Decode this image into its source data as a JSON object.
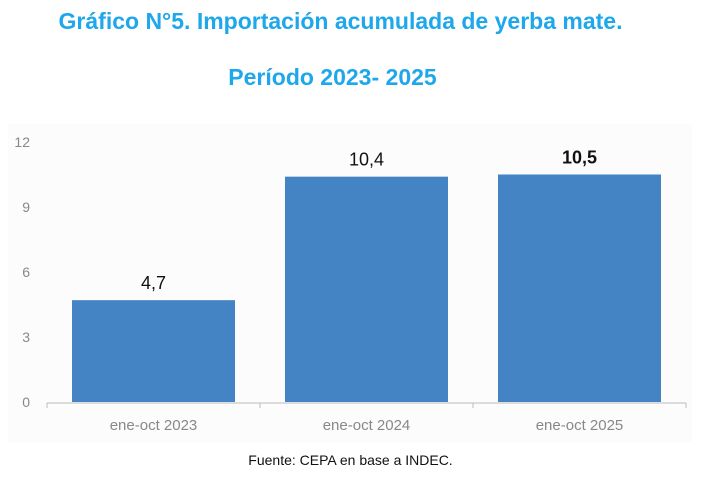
{
  "chart_data": {
    "type": "bar",
    "title": "Gráfico N°5. Importación acumulada de yerba mate.",
    "subtitle": "Período 2023- 2025",
    "categories": [
      "ene-oct 2023",
      "ene-oct 2024",
      "ene-oct 2025"
    ],
    "values": [
      4.7,
      10.4,
      10.5
    ],
    "data_labels": [
      "4,7",
      "10,4",
      "10,5"
    ],
    "yticks": [
      "0",
      "3",
      "6",
      "9",
      "12"
    ],
    "ytick_values": [
      0,
      3,
      6,
      9,
      12
    ],
    "ylim": [
      0,
      12
    ],
    "xlabel": "",
    "ylabel": "",
    "grid": false,
    "bar_color": "#4484c4",
    "title_color": "#1ea7ea"
  },
  "source": "Fuente: CEPA en base a INDEC."
}
